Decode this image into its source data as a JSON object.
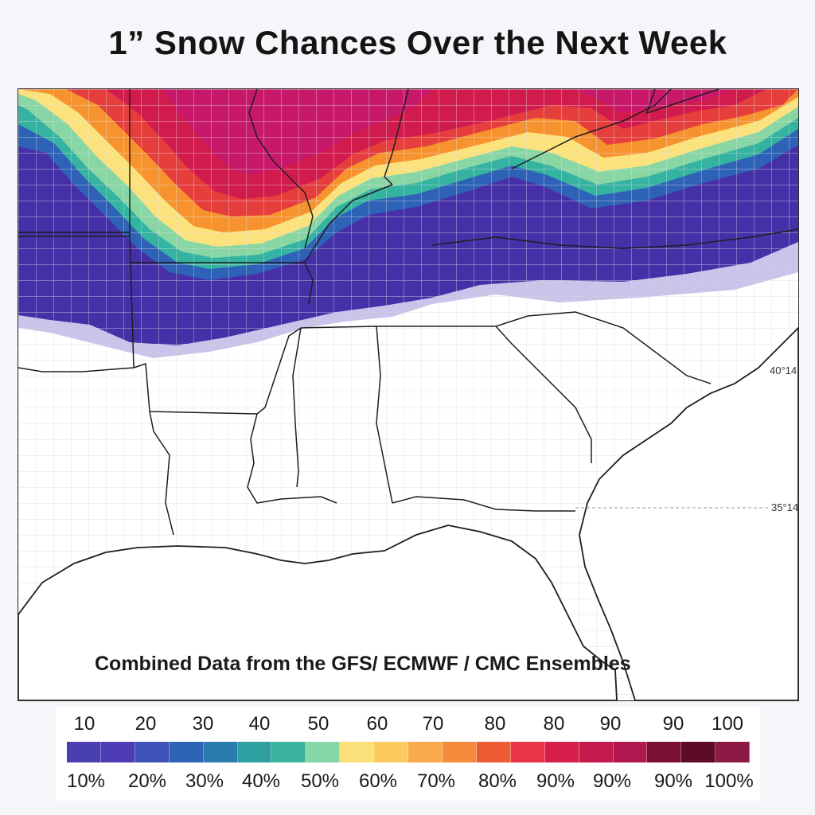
{
  "title": "1” Snow Chances Over the Next Week",
  "caption": "Combined Data from the GFS/ ECMWF / CMC Ensembles",
  "lat_labels": [
    "40°14",
    "35°14"
  ],
  "legend": {
    "top_labels": [
      "10",
      "20",
      "30",
      "40",
      "50",
      "60",
      "70",
      "80",
      "80",
      "90",
      "90",
      "100"
    ],
    "bottom_labels": [
      "10%",
      "20%",
      "30%",
      "40%",
      "50%",
      "60%",
      "70%",
      "80%",
      "90%",
      "90%",
      "90%",
      "100%"
    ],
    "colors": [
      "#4a3fb0",
      "#4d3cb5",
      "#3d52b8",
      "#2f63b5",
      "#2a7cb0",
      "#2e9fa0",
      "#3bb3a0",
      "#86d6a6",
      "#fbe07a",
      "#fccb5f",
      "#fba94d",
      "#f78a3c",
      "#ef5b34",
      "#e73447",
      "#d81f4b",
      "#c51a4d",
      "#b0184f",
      "#7a0e33",
      "#5e0a28",
      "#8c1a44"
    ]
  },
  "map": {
    "colors": {
      "purple": "#4530a8",
      "blue": "#2e62b6",
      "teal": "#35b3a1",
      "green": "#88d6a4",
      "yellow": "#fbe27d",
      "orange": "#f7932f",
      "red": "#e63e3c",
      "crimson": "#d21b4d",
      "magenta": "#c8186a",
      "lavender": "#c4bfe6",
      "land": "#ffffff",
      "state_line": "#1e1e1e",
      "county_line": "#c8c8d0"
    }
  }
}
